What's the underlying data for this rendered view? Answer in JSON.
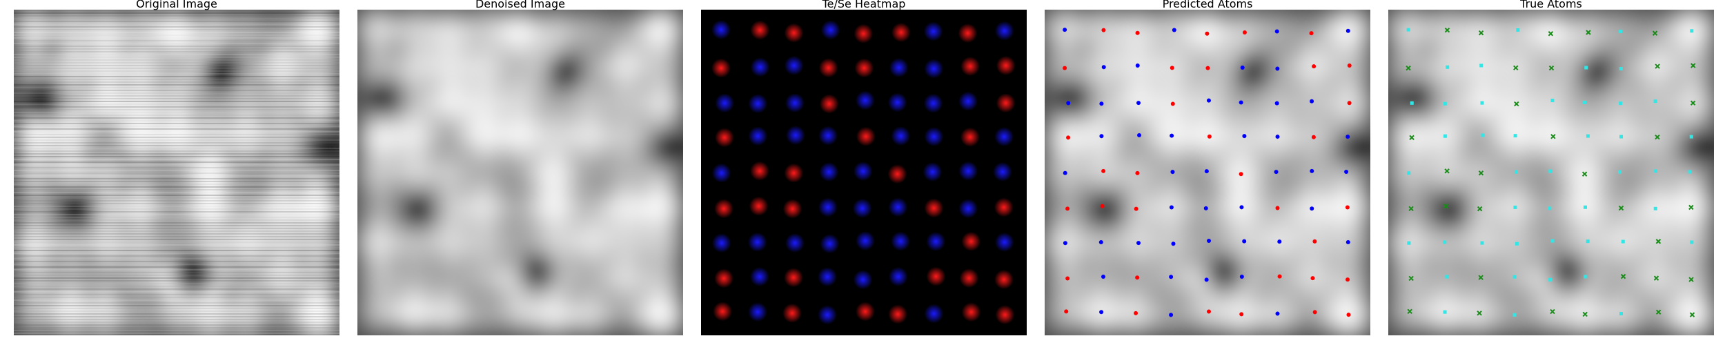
{
  "panels": [
    {
      "title": "Original Image"
    },
    {
      "title": "Denoised Image"
    },
    {
      "title": "Te/Se Heatmap"
    },
    {
      "title": "Predicted Atoms"
    },
    {
      "title": "True Atoms"
    }
  ],
  "colors": {
    "te_heat": "#ff1a1a",
    "se_heat": "#1a1aff",
    "predicted_te": "#ff0000",
    "predicted_se": "#0000ff",
    "true_te": "#1a8c1a",
    "true_se": "#33e6e6"
  }
}
